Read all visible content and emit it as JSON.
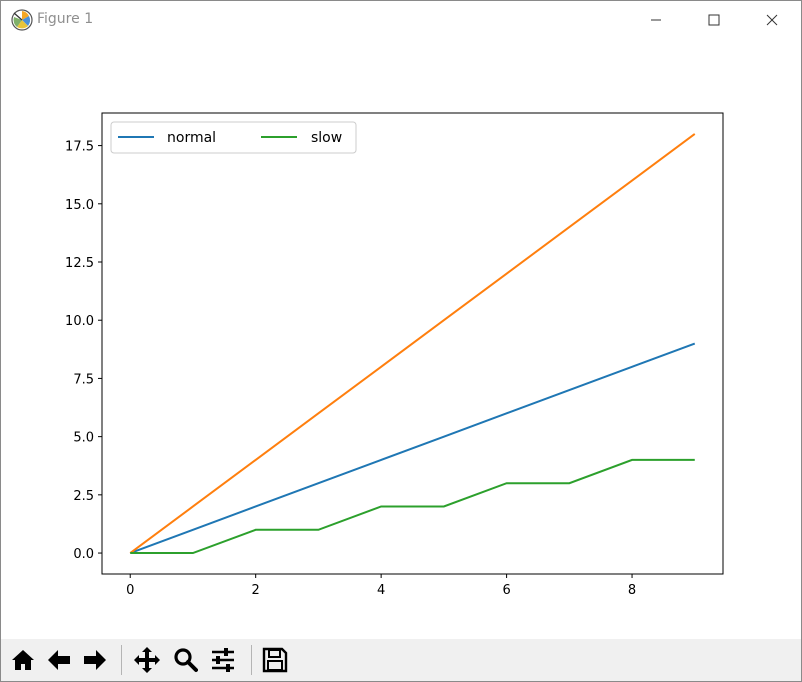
{
  "window": {
    "title": "Figure 1",
    "minimize_label": "minimize-button",
    "maximize_label": "maximize-button",
    "close_label": "close-button"
  },
  "toolbar": {
    "buttons": [
      "home-icon",
      "back-icon",
      "forward-icon",
      "pan-icon",
      "zoom-icon",
      "configure-subplots-icon",
      "save-icon"
    ]
  },
  "colors": {
    "normal": "#1f77b4",
    "fast": "#ff7f0e",
    "slow": "#2ca02c"
  },
  "chart_data": {
    "type": "line",
    "title": "",
    "xlabel": "",
    "ylabel": "",
    "xlim": [
      -0.45,
      9.45
    ],
    "ylim": [
      -0.9,
      18.9
    ],
    "x_ticks": [
      "0",
      "2",
      "4",
      "6",
      "8"
    ],
    "y_ticks": [
      "0.0",
      "2.5",
      "5.0",
      "7.5",
      "10.0",
      "12.5",
      "15.0",
      "17.5"
    ],
    "x": [
      0,
      1,
      2,
      3,
      4,
      5,
      6,
      7,
      8,
      9
    ],
    "series": [
      {
        "name": "normal",
        "values": [
          0,
          1,
          2,
          3,
          4,
          5,
          6,
          7,
          8,
          9
        ]
      },
      {
        "name": "",
        "values": [
          0,
          2,
          4,
          6,
          8,
          10,
          12,
          14,
          16,
          18
        ]
      },
      {
        "name": "slow",
        "values": [
          0,
          0,
          1,
          1,
          2,
          2,
          3,
          3,
          4,
          4
        ]
      }
    ],
    "legend": {
      "position": "top-left",
      "entries": [
        "normal",
        "slow"
      ]
    },
    "grid": false
  }
}
